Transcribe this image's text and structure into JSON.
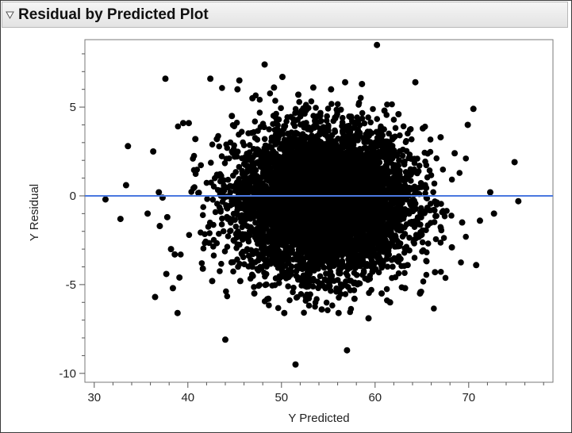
{
  "header": {
    "title": "Residual by Predicted Plot",
    "disclosure_icon": "triangle-down-icon"
  },
  "chart_data": {
    "type": "scatter",
    "title": "Residual by Predicted Plot",
    "xlabel": "Y Predicted",
    "ylabel": "Y Residual",
    "xlim": [
      29,
      79
    ],
    "ylim": [
      -10.5,
      8.8
    ],
    "x_ticks": [
      30,
      40,
      50,
      60,
      70
    ],
    "y_ticks": [
      5,
      0,
      -5,
      -10
    ],
    "x_tick_labels": [
      "30",
      "40",
      "50",
      "60",
      "70"
    ],
    "y_tick_labels": [
      "5",
      "0",
      "-5",
      "-10"
    ],
    "grid": false,
    "reference_line": {
      "y": 0,
      "color": "#4a78e0"
    },
    "point_color": "#000000",
    "dense_cloud": {
      "center_x": 54.5,
      "center_y": -0.3,
      "spread_x": 4.6,
      "spread_y": 2.0,
      "approx_count": 6000
    },
    "series": [
      {
        "points": [
          [
            31.2,
            -0.2
          ],
          [
            32.8,
            -1.3
          ],
          [
            33.4,
            0.6
          ],
          [
            33.6,
            2.8
          ],
          [
            35.7,
            -1.0
          ],
          [
            36.3,
            2.5
          ],
          [
            36.5,
            -5.7
          ],
          [
            36.9,
            0.2
          ],
          [
            37.0,
            -1.7
          ],
          [
            37.3,
            -0.1
          ],
          [
            37.6,
            6.6
          ],
          [
            37.7,
            -4.4
          ],
          [
            37.8,
            -1.2
          ],
          [
            38.2,
            -3.0
          ],
          [
            38.4,
            -5.2
          ],
          [
            38.6,
            -3.3
          ],
          [
            38.9,
            -6.6
          ],
          [
            39.1,
            -4.6
          ],
          [
            39.5,
            4.1
          ],
          [
            40.1,
            4.1
          ],
          [
            40.8,
            3.2
          ],
          [
            41.6,
            -4.1
          ],
          [
            42.4,
            6.6
          ],
          [
            42.6,
            -4.8
          ],
          [
            43.1,
            3.2
          ],
          [
            44.0,
            -8.1
          ],
          [
            44.7,
            4.5
          ],
          [
            45.3,
            6.0
          ],
          [
            45.5,
            6.5
          ],
          [
            45.6,
            -4.8
          ],
          [
            46.9,
            5.5
          ],
          [
            47.1,
            -5.5
          ],
          [
            48.2,
            7.4
          ],
          [
            48.6,
            -5.8
          ],
          [
            49.2,
            6.1
          ],
          [
            49.7,
            4.3
          ],
          [
            50.1,
            6.7
          ],
          [
            50.3,
            -6.6
          ],
          [
            50.7,
            3.5
          ],
          [
            51.5,
            -9.5
          ],
          [
            51.8,
            5.7
          ],
          [
            52.6,
            -5.7
          ],
          [
            53.4,
            6.1
          ],
          [
            54.3,
            -6.4
          ],
          [
            55.3,
            6.0
          ],
          [
            56.1,
            -6.6
          ],
          [
            56.8,
            6.4
          ],
          [
            57.0,
            -8.7
          ],
          [
            57.8,
            -5.8
          ],
          [
            58.6,
            6.3
          ],
          [
            59.3,
            -6.9
          ],
          [
            60.2,
            8.5
          ],
          [
            60.7,
            -5.5
          ],
          [
            61.0,
            4.8
          ],
          [
            61.6,
            -6.0
          ],
          [
            62.5,
            4.6
          ],
          [
            63.2,
            -5.2
          ],
          [
            64.3,
            6.4
          ],
          [
            64.8,
            -5.5
          ],
          [
            65.1,
            3.8
          ],
          [
            66.4,
            -4.3
          ],
          [
            67.0,
            3.3
          ],
          [
            68.2,
            -2.9
          ],
          [
            68.5,
            2.4
          ],
          [
            69.3,
            -1.5
          ],
          [
            69.9,
            4.0
          ],
          [
            70.5,
            4.9
          ],
          [
            70.8,
            -3.9
          ],
          [
            71.2,
            -1.4
          ],
          [
            72.3,
            0.2
          ],
          [
            72.7,
            -1.0
          ],
          [
            74.9,
            1.9
          ],
          [
            75.3,
            -0.3
          ]
        ]
      }
    ]
  }
}
